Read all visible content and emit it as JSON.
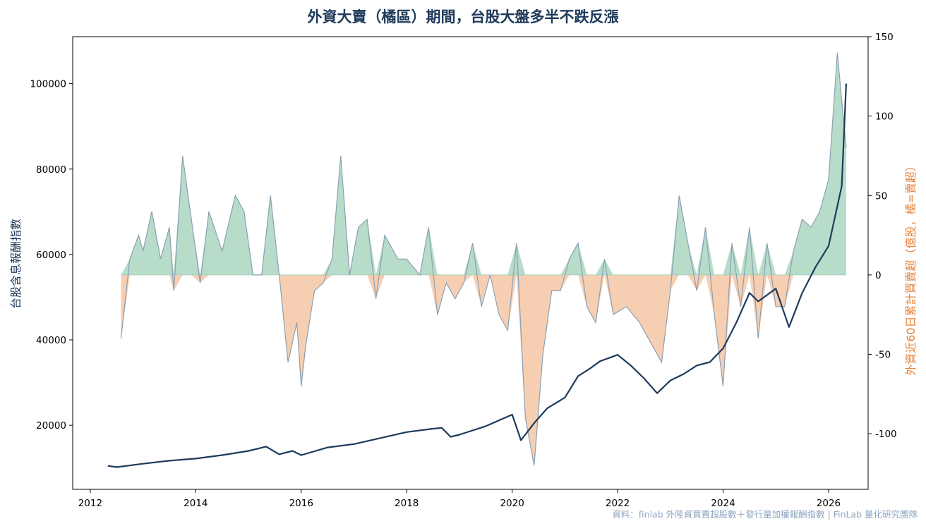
{
  "chart_data": {
    "type": "line",
    "title": "外資大賣（橘區）期間，台股大盤多半不跌反漲",
    "ylabel": "台股含息報酬指數",
    "ylabel_right": "外資近60日累計買賣超（億股，橘=賣超）",
    "source": "資料：finlab 外陸資買賣超股數＋發行量加權報酬指數 | FinLab 量化研究團隊",
    "x_ticks": [
      "2012",
      "2014",
      "2016",
      "2018",
      "2020",
      "2022",
      "2024",
      "2026"
    ],
    "y_left_ticks": [
      "20000",
      "40000",
      "60000",
      "80000",
      "100000"
    ],
    "y_right_ticks": [
      "150",
      "100",
      "50",
      "0",
      "-50",
      "-100"
    ],
    "xlim": [
      "2011-09",
      "2026-10"
    ],
    "ylim_left": [
      5000,
      111000
    ],
    "ylim_right": [
      -135,
      150
    ],
    "grid": false,
    "legend": "none",
    "colors": {
      "index_line": "#1f3a5a",
      "flow_line": "#8aa0b4",
      "buy_fill": "#b7dcc9",
      "sell_fill": "#f6cfb3",
      "right_axis_label": "#e8833a"
    },
    "series": [
      {
        "name": "台股含息報酬指數",
        "axis": "left",
        "x": [
          "2012-05",
          "2012-07",
          "2013-01",
          "2013-07",
          "2014-01",
          "2014-07",
          "2015-01",
          "2015-05",
          "2015-08",
          "2015-11",
          "2016-01",
          "2016-07",
          "2017-01",
          "2017-07",
          "2018-01",
          "2018-07",
          "2018-09",
          "2018-11",
          "2019-01",
          "2019-07",
          "2020-01",
          "2020-03",
          "2020-06",
          "2020-09",
          "2021-01",
          "2021-04",
          "2021-07",
          "2021-09",
          "2022-01",
          "2022-04",
          "2022-07",
          "2022-10",
          "2023-01",
          "2023-04",
          "2023-07",
          "2023-10",
          "2024-01",
          "2024-04",
          "2024-07",
          "2024-09",
          "2025-01",
          "2025-04",
          "2025-07",
          "2025-10",
          "2026-01",
          "2026-04",
          "2026-05"
        ],
        "values": [
          10500,
          10200,
          11000,
          11700,
          12200,
          13000,
          14000,
          15000,
          13200,
          14000,
          13000,
          14800,
          15600,
          17000,
          18400,
          19200,
          19400,
          17300,
          17800,
          19800,
          22500,
          16500,
          20500,
          24000,
          26500,
          31500,
          33500,
          35000,
          36500,
          34000,
          31000,
          27500,
          30500,
          32000,
          34000,
          34800,
          38000,
          44000,
          51000,
          49000,
          52000,
          43000,
          51000,
          57000,
          62000,
          76000,
          100000
        ]
      },
      {
        "name": "外資近60日累計買賣超",
        "axis": "right",
        "x": [
          "2012-08",
          "2012-10",
          "2012-12",
          "2013-01",
          "2013-03",
          "2013-05",
          "2013-07",
          "2013-08",
          "2013-10",
          "2013-12",
          "2014-02",
          "2014-04",
          "2014-07",
          "2014-10",
          "2014-12",
          "2015-02",
          "2015-04",
          "2015-06",
          "2015-08",
          "2015-10",
          "2015-12",
          "2016-01",
          "2016-02",
          "2016-04",
          "2016-06",
          "2016-08",
          "2016-10",
          "2016-12",
          "2017-02",
          "2017-04",
          "2017-06",
          "2017-08",
          "2017-11",
          "2018-01",
          "2018-04",
          "2018-06",
          "2018-08",
          "2018-10",
          "2018-12",
          "2019-02",
          "2019-04",
          "2019-06",
          "2019-08",
          "2019-10",
          "2019-12",
          "2020-02",
          "2020-04",
          "2020-06",
          "2020-08",
          "2020-10",
          "2020-12",
          "2021-02",
          "2021-04",
          "2021-06",
          "2021-08",
          "2021-10",
          "2021-12",
          "2022-03",
          "2022-06",
          "2022-09",
          "2022-11",
          "2023-01",
          "2023-03",
          "2023-05",
          "2023-07",
          "2023-09",
          "2023-11",
          "2024-01",
          "2024-03",
          "2024-05",
          "2024-07",
          "2024-09",
          "2024-11",
          "2025-01",
          "2025-03",
          "2025-05",
          "2025-07",
          "2025-09",
          "2025-11",
          "2026-01",
          "2026-03",
          "2026-04",
          "2026-05"
        ],
        "values": [
          -40,
          10,
          25,
          15,
          40,
          10,
          30,
          -10,
          75,
          35,
          -5,
          40,
          15,
          50,
          40,
          0,
          0,
          50,
          0,
          -55,
          -30,
          -70,
          -45,
          -10,
          -5,
          10,
          75,
          0,
          30,
          35,
          -15,
          25,
          10,
          10,
          0,
          30,
          -25,
          -5,
          -15,
          -5,
          20,
          -20,
          0,
          -25,
          -35,
          20,
          -90,
          -120,
          -50,
          -10,
          -10,
          10,
          20,
          -20,
          -30,
          10,
          -25,
          -20,
          -30,
          -45,
          -55,
          -10,
          50,
          20,
          -10,
          30,
          -25,
          -70,
          20,
          -20,
          30,
          -40,
          20,
          -20,
          -20,
          15,
          35,
          30,
          40,
          60,
          140,
          110,
          80
        ]
      }
    ]
  }
}
